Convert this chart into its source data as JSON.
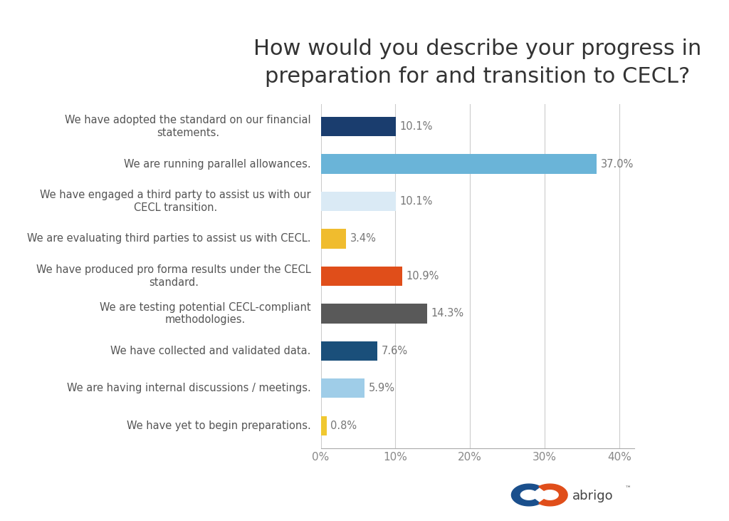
{
  "title": "How would you describe your progress in\npreparation for and transition to CECL?",
  "categories": [
    "We have adopted the standard on our financial\nstatements.",
    "We are running parallel allowances.",
    "We have engaged a third party to assist us with our\nCECL transition.",
    "We are evaluating third parties to assist us with CECL.",
    "We have produced pro forma results under the CECL\nstandard.",
    "We are testing potential CECL-compliant\nmethodologies.",
    "We have collected and validated data.",
    "We are having internal discussions / meetings.",
    "We have yet to begin preparations."
  ],
  "values": [
    10.1,
    37.0,
    10.1,
    3.4,
    10.9,
    14.3,
    7.6,
    5.9,
    0.8
  ],
  "bar_colors": [
    "#1a3d6e",
    "#6ab4d8",
    "#daeaf5",
    "#f0bc2e",
    "#e04e1a",
    "#595959",
    "#1a4f7a",
    "#9fcde8",
    "#f0c830"
  ],
  "labels": [
    "10.1%",
    "37.0%",
    "10.1%",
    "3.4%",
    "10.9%",
    "14.3%",
    "7.6%",
    "5.9%",
    "0.8%"
  ],
  "xlim": [
    0,
    42
  ],
  "xticks": [
    0,
    10,
    20,
    30,
    40
  ],
  "xticklabels": [
    "0%",
    "10%",
    "20%",
    "30%",
    "40%"
  ],
  "background_color": "#ffffff",
  "title_fontsize": 22,
  "label_fontsize": 10.5,
  "tick_fontsize": 11,
  "bar_height": 0.52,
  "logo_text": "abrigo",
  "logo_blue": "#1a4f8c",
  "logo_orange": "#e04e1a",
  "logo_text_color": "#555555"
}
